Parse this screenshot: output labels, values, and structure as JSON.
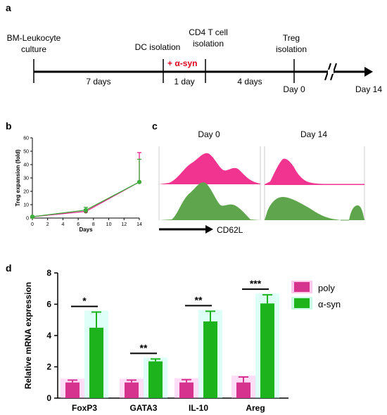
{
  "panels": {
    "a": "a",
    "b": "b",
    "c": "c",
    "d": "d"
  },
  "timeline": {
    "steps": [
      {
        "id": "bm",
        "label_line1": "BM-Leukocyte",
        "label_line2": "culture"
      },
      {
        "id": "dc",
        "label_line1": "DC isolation",
        "label_line2": ""
      },
      {
        "id": "cd4",
        "label_line1": "CD4 T cell",
        "label_line2": "isolation"
      },
      {
        "id": "treg",
        "label_line1": "Treg",
        "label_line2": "isolation"
      }
    ],
    "asyn_label": "+ α-syn",
    "intervals": [
      "7 days",
      "1 day",
      "4 days"
    ],
    "day0": "Day 0",
    "day14": "Day 14",
    "accent": "#e0001b"
  },
  "flow": {
    "col1": "Day 0",
    "col2": "Day 14",
    "axis_label": "CD62L",
    "pink": "#f0348f",
    "green": "#5ea54d"
  },
  "chart_data": [
    {
      "id": "b",
      "type": "line",
      "xlabel": "Days",
      "ylabel": "Treg expansion (fold)",
      "xlim": [
        0,
        14
      ],
      "ylim": [
        0,
        60
      ],
      "xticks": [
        0,
        2,
        4,
        6,
        8,
        10,
        12,
        14
      ],
      "yticks": [
        0,
        10,
        20,
        30,
        40,
        50,
        60
      ],
      "series": [
        {
          "color": "#e91e8c",
          "x": [
            0,
            7,
            14
          ],
          "y": [
            1,
            5,
            27
          ],
          "err": [
            0.5,
            1.5,
            22
          ]
        },
        {
          "color": "#3cae3c",
          "x": [
            0,
            7,
            14
          ],
          "y": [
            1,
            6,
            27
          ],
          "err": [
            0.5,
            2,
            17
          ]
        }
      ]
    },
    {
      "id": "d",
      "type": "bar",
      "ylabel": "Relative mRNA expression",
      "ylim": [
        0,
        8
      ],
      "yticks": [
        0,
        2,
        4,
        6,
        8
      ],
      "categories": [
        "FoxP3",
        "GATA3",
        "IL-10",
        "Areg"
      ],
      "series": [
        {
          "name": "poly",
          "color": "#d6338f",
          "values": [
            1.0,
            1.0,
            1.0,
            1.0
          ],
          "err": [
            0.15,
            0.15,
            0.18,
            0.35
          ]
        },
        {
          "name": "α-syn",
          "color": "#1db31d",
          "values": [
            4.5,
            2.35,
            4.9,
            6.05
          ],
          "err": [
            1.0,
            0.15,
            0.65,
            0.55
          ]
        }
      ],
      "significance": [
        "*",
        "**",
        "**",
        "***"
      ]
    }
  ]
}
